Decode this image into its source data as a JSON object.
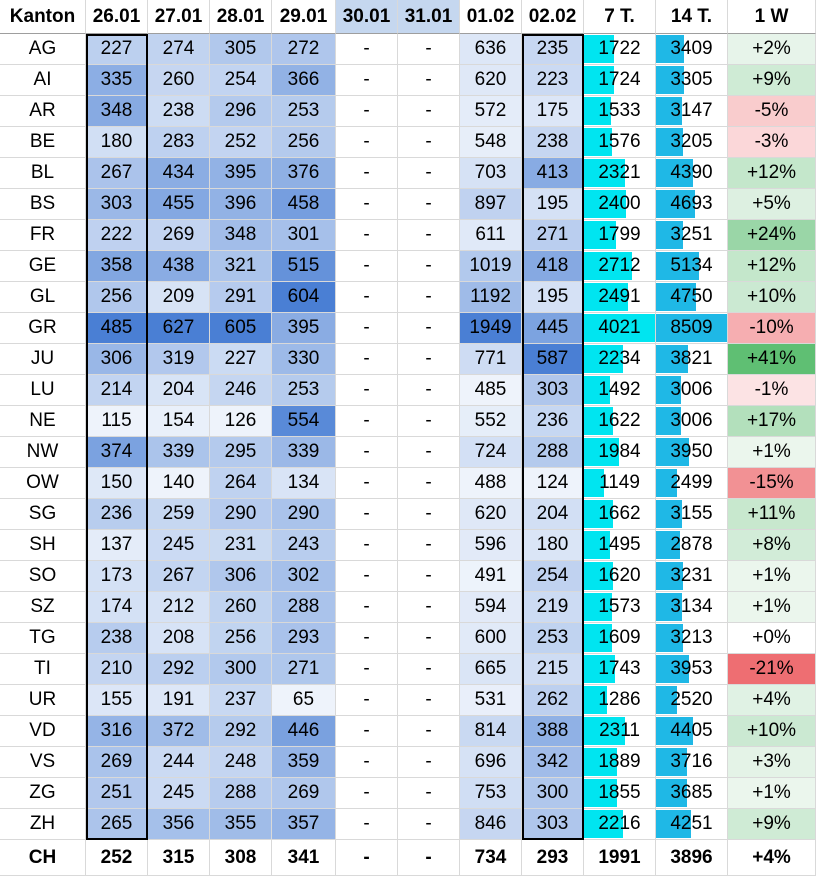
{
  "chart_data": {
    "type": "table",
    "columns": [
      "Kanton",
      "26.01",
      "27.01",
      "28.01",
      "29.01",
      "30.01",
      "31.01",
      "01.02",
      "02.02",
      "7 T.",
      "14 T.",
      "1 W"
    ],
    "rows": [
      {
        "kanton": "AG",
        "days": [
          "227",
          "274",
          "305",
          "272",
          "-",
          "-",
          "636",
          "235"
        ],
        "t7": "1722",
        "t14": "3409",
        "w1": "+2%"
      },
      {
        "kanton": "AI",
        "days": [
          "335",
          "260",
          "254",
          "366",
          "-",
          "-",
          "620",
          "223"
        ],
        "t7": "1724",
        "t14": "3305",
        "w1": "+9%"
      },
      {
        "kanton": "AR",
        "days": [
          "348",
          "238",
          "296",
          "253",
          "-",
          "-",
          "572",
          "175"
        ],
        "t7": "1533",
        "t14": "3147",
        "w1": "-5%"
      },
      {
        "kanton": "BE",
        "days": [
          "180",
          "283",
          "252",
          "256",
          "-",
          "-",
          "548",
          "238"
        ],
        "t7": "1576",
        "t14": "3205",
        "w1": "-3%"
      },
      {
        "kanton": "BL",
        "days": [
          "267",
          "434",
          "395",
          "376",
          "-",
          "-",
          "703",
          "413"
        ],
        "t7": "2321",
        "t14": "4390",
        "w1": "+12%"
      },
      {
        "kanton": "BS",
        "days": [
          "303",
          "455",
          "396",
          "458",
          "-",
          "-",
          "897",
          "195"
        ],
        "t7": "2400",
        "t14": "4693",
        "w1": "+5%"
      },
      {
        "kanton": "FR",
        "days": [
          "222",
          "269",
          "348",
          "301",
          "-",
          "-",
          "611",
          "271"
        ],
        "t7": "1799",
        "t14": "3251",
        "w1": "+24%"
      },
      {
        "kanton": "GE",
        "days": [
          "358",
          "438",
          "321",
          "515",
          "-",
          "-",
          "1019",
          "418"
        ],
        "t7": "2712",
        "t14": "5134",
        "w1": "+12%"
      },
      {
        "kanton": "GL",
        "days": [
          "256",
          "209",
          "291",
          "604",
          "-",
          "-",
          "1192",
          "195"
        ],
        "t7": "2491",
        "t14": "4750",
        "w1": "+10%"
      },
      {
        "kanton": "GR",
        "days": [
          "485",
          "627",
          "605",
          "395",
          "-",
          "-",
          "1949",
          "445"
        ],
        "t7": "4021",
        "t14": "8509",
        "w1": "-10%"
      },
      {
        "kanton": "JU",
        "days": [
          "306",
          "319",
          "227",
          "330",
          "-",
          "-",
          "771",
          "587"
        ],
        "t7": "2234",
        "t14": "3821",
        "w1": "+41%"
      },
      {
        "kanton": "LU",
        "days": [
          "214",
          "204",
          "246",
          "253",
          "-",
          "-",
          "485",
          "303"
        ],
        "t7": "1492",
        "t14": "3006",
        "w1": "-1%"
      },
      {
        "kanton": "NE",
        "days": [
          "115",
          "154",
          "126",
          "554",
          "-",
          "-",
          "552",
          "236"
        ],
        "t7": "1622",
        "t14": "3006",
        "w1": "+17%"
      },
      {
        "kanton": "NW",
        "days": [
          "374",
          "339",
          "295",
          "339",
          "-",
          "-",
          "724",
          "288"
        ],
        "t7": "1984",
        "t14": "3950",
        "w1": "+1%"
      },
      {
        "kanton": "OW",
        "days": [
          "150",
          "140",
          "264",
          "134",
          "-",
          "-",
          "488",
          "124"
        ],
        "t7": "1149",
        "t14": "2499",
        "w1": "-15%"
      },
      {
        "kanton": "SG",
        "days": [
          "236",
          "259",
          "290",
          "290",
          "-",
          "-",
          "620",
          "204"
        ],
        "t7": "1662",
        "t14": "3155",
        "w1": "+11%"
      },
      {
        "kanton": "SH",
        "days": [
          "137",
          "245",
          "231",
          "243",
          "-",
          "-",
          "596",
          "180"
        ],
        "t7": "1495",
        "t14": "2878",
        "w1": "+8%"
      },
      {
        "kanton": "SO",
        "days": [
          "173",
          "267",
          "306",
          "302",
          "-",
          "-",
          "491",
          "254"
        ],
        "t7": "1620",
        "t14": "3231",
        "w1": "+1%"
      },
      {
        "kanton": "SZ",
        "days": [
          "174",
          "212",
          "260",
          "288",
          "-",
          "-",
          "594",
          "219"
        ],
        "t7": "1573",
        "t14": "3134",
        "w1": "+1%"
      },
      {
        "kanton": "TG",
        "days": [
          "238",
          "208",
          "256",
          "293",
          "-",
          "-",
          "600",
          "253"
        ],
        "t7": "1609",
        "t14": "3213",
        "w1": "+0%"
      },
      {
        "kanton": "TI",
        "days": [
          "210",
          "292",
          "300",
          "271",
          "-",
          "-",
          "665",
          "215"
        ],
        "t7": "1743",
        "t14": "3953",
        "w1": "-21%"
      },
      {
        "kanton": "UR",
        "days": [
          "155",
          "191",
          "237",
          "65",
          "-",
          "-",
          "531",
          "262"
        ],
        "t7": "1286",
        "t14": "2520",
        "w1": "+4%"
      },
      {
        "kanton": "VD",
        "days": [
          "316",
          "372",
          "292",
          "446",
          "-",
          "-",
          "814",
          "388"
        ],
        "t7": "2311",
        "t14": "4405",
        "w1": "+10%"
      },
      {
        "kanton": "VS",
        "days": [
          "269",
          "244",
          "248",
          "359",
          "-",
          "-",
          "696",
          "342"
        ],
        "t7": "1889",
        "t14": "3716",
        "w1": "+3%"
      },
      {
        "kanton": "ZG",
        "days": [
          "251",
          "245",
          "288",
          "269",
          "-",
          "-",
          "753",
          "300"
        ],
        "t7": "1855",
        "t14": "3685",
        "w1": "+1%"
      },
      {
        "kanton": "ZH",
        "days": [
          "265",
          "356",
          "355",
          "357",
          "-",
          "-",
          "846",
          "303"
        ],
        "t7": "2216",
        "t14": "4251",
        "w1": "+9%"
      }
    ],
    "total": {
      "kanton": "CH",
      "days": [
        "252",
        "315",
        "308",
        "341",
        "-",
        "-",
        "734",
        "293"
      ],
      "t7": "1991",
      "t14": "3896",
      "w1": "+4%"
    },
    "heat_low": "#eef3fb",
    "heat_high": "#4a7fd4",
    "header_fill": "#c5d7ef",
    "bar_7t": "#00e5f0",
    "bar_14t": "#1fb8e6",
    "pos_low": "#eef7f0",
    "pos_high": "#5fbf73",
    "neg_low": "#fde9ea",
    "neg_high": "#ee6e72"
  }
}
